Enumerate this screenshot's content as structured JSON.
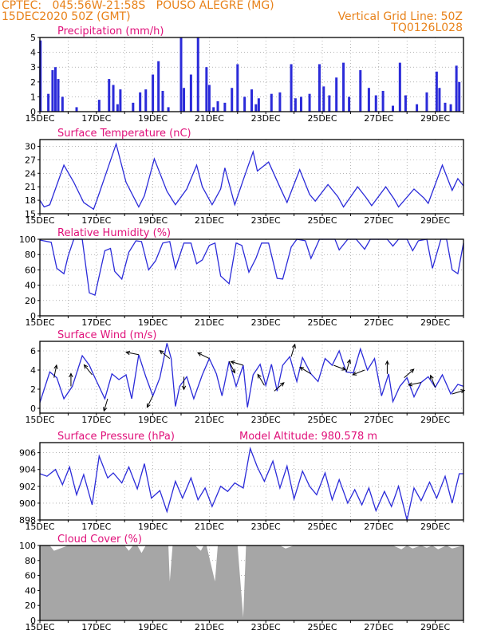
{
  "header": {
    "line1": "CPTEC:   045:56W-21:58S   POUSO ALEGRE (MG)",
    "line2_left": "15DEC2020 50Z (GMT)",
    "line2_right": "Vertical Grid Line: 50Z",
    "line3_right": "TQ0126L028"
  },
  "colors": {
    "header": "#e8821a",
    "panel_title": "#e0117a",
    "series": "#2b2bd9",
    "cloud": "#a6a6a6",
    "grid": "#888888"
  },
  "chart_data": [
    {
      "type": "bar",
      "title": "Precipitation (mm/h)",
      "ylim": [
        0,
        5
      ],
      "yticks": [
        0,
        1,
        2,
        3,
        4,
        5
      ],
      "xticks": [
        "15DEC",
        "17DEC",
        "19DEC",
        "21DEC",
        "23DEC",
        "25DEC",
        "27DEC",
        "29DEC"
      ],
      "xlim_days": [
        0,
        15
      ],
      "grid": true,
      "series": [
        {
          "x_days": [
            0.02,
            0.3,
            0.45,
            0.55,
            0.65,
            0.8,
            1.3,
            2.1,
            2.45,
            2.6,
            2.75,
            2.85,
            3.3,
            3.55,
            3.75,
            4.0,
            4.2,
            4.35,
            4.55,
            5.0,
            5.1,
            5.35,
            5.6,
            5.9,
            6.0,
            6.15,
            6.3,
            6.55,
            6.8,
            7.0,
            7.25,
            7.5,
            7.65,
            7.75,
            8.2,
            8.5,
            8.9,
            9.05,
            9.25,
            9.55,
            9.9,
            10.05,
            10.25,
            10.5,
            10.75,
            10.95,
            11.35,
            11.65,
            11.9,
            12.15,
            12.5,
            12.75,
            12.95,
            13.35,
            13.7,
            14.05,
            14.15,
            14.35,
            14.55,
            14.75,
            14.85
          ],
          "values": [
            4.8,
            1.2,
            2.8,
            3.0,
            2.2,
            1.0,
            0.3,
            0.8,
            2.2,
            1.8,
            0.5,
            1.5,
            0.6,
            1.3,
            1.5,
            2.5,
            3.4,
            1.4,
            0.3,
            5.0,
            1.6,
            2.5,
            5.0,
            3.0,
            1.8,
            0.3,
            0.7,
            0.6,
            1.6,
            3.2,
            1.0,
            1.5,
            0.5,
            0.9,
            1.2,
            1.3,
            3.2,
            0.9,
            1.0,
            1.2,
            3.2,
            1.7,
            1.1,
            2.3,
            3.3,
            1.0,
            2.8,
            1.6,
            1.1,
            1.4,
            0.4,
            3.3,
            1.1,
            0.5,
            1.3,
            2.7,
            1.6,
            0.6,
            0.5,
            3.1,
            2.0
          ]
        }
      ]
    },
    {
      "type": "line",
      "title": "Surface Temperature (nC)",
      "ylim": [
        15,
        31.5
      ],
      "yticks": [
        15,
        18,
        21,
        24,
        27,
        30
      ],
      "xticks": [
        "15DEC",
        "17DEC",
        "19DEC",
        "21DEC",
        "23DEC",
        "25DEC",
        "27DEC",
        "29DEC"
      ],
      "xlim_days": [
        0,
        15
      ],
      "grid": true,
      "series": [
        {
          "x_days": [
            0,
            0.15,
            0.35,
            0.85,
            1.2,
            1.55,
            1.9,
            2.1,
            2.7,
            3.05,
            3.5,
            3.7,
            4.05,
            4.5,
            4.8,
            5.2,
            5.55,
            5.75,
            6.1,
            6.4,
            6.55,
            6.75,
            6.9,
            7.2,
            7.55,
            7.7,
            8.1,
            8.55,
            8.75,
            9.2,
            9.55,
            9.75,
            10.2,
            10.55,
            10.75,
            11.25,
            11.55,
            11.75,
            12.25,
            12.55,
            12.7,
            13.25,
            13.6,
            13.75,
            14.25,
            14.6,
            14.8,
            15
          ],
          "values": [
            18,
            16.5,
            17,
            25.8,
            22,
            17.5,
            16,
            19.5,
            30.5,
            22,
            16.5,
            19,
            27.2,
            20,
            17,
            20.5,
            25.8,
            21,
            17,
            20.5,
            25.2,
            20.5,
            17,
            22.5,
            28.8,
            24.5,
            26.5,
            20.2,
            17.5,
            24.8,
            19.3,
            17.8,
            21.5,
            18.8,
            16.5,
            21,
            18.6,
            16.8,
            21,
            18.2,
            16.5,
            20.5,
            18.5,
            17.3,
            25.8,
            20.2,
            22.8,
            21.2
          ]
        }
      ]
    },
    {
      "type": "line",
      "title": "Relative Humidity (%)",
      "ylim": [
        0,
        100
      ],
      "yticks": [
        0,
        20,
        40,
        60,
        80,
        100
      ],
      "xticks": [
        "15DEC",
        "17DEC",
        "19DEC",
        "21DEC",
        "23DEC",
        "25DEC",
        "27DEC",
        "29DEC"
      ],
      "xlim_days": [
        0,
        15
      ],
      "grid": true,
      "series": [
        {
          "x_days": [
            0,
            0.4,
            0.6,
            0.85,
            1.0,
            1.2,
            1.5,
            1.75,
            1.95,
            2.3,
            2.5,
            2.65,
            2.9,
            3.15,
            3.4,
            3.6,
            3.85,
            4.1,
            4.35,
            4.6,
            4.8,
            5.1,
            5.35,
            5.55,
            5.75,
            6.0,
            6.2,
            6.4,
            6.7,
            6.95,
            7.15,
            7.4,
            7.65,
            7.85,
            8.1,
            8.4,
            8.6,
            8.9,
            9.1,
            9.4,
            9.6,
            9.9,
            10.1,
            10.45,
            10.6,
            10.9,
            11.2,
            11.5,
            11.7,
            12.0,
            12.3,
            12.5,
            12.7,
            13.0,
            13.2,
            13.4,
            13.7,
            13.9,
            14.2,
            14.4,
            14.6,
            14.8,
            15
          ],
          "values": [
            99,
            96,
            62,
            55,
            78,
            100,
            100,
            30,
            27,
            85,
            88,
            58,
            48,
            83,
            98,
            97,
            60,
            72,
            95,
            97,
            62,
            95,
            95,
            68,
            73,
            92,
            95,
            52,
            42,
            95,
            92,
            57,
            75,
            95,
            95,
            49,
            48,
            90,
            100,
            98,
            75,
            100,
            100,
            100,
            86,
            100,
            100,
            87,
            100,
            100,
            100,
            91,
            100,
            100,
            85,
            98,
            100,
            62,
            100,
            100,
            60,
            55,
            95
          ]
        }
      ]
    },
    {
      "type": "line",
      "title": "Surface Wind (m/s)",
      "ylim": [
        -0.5,
        7
      ],
      "yticks": [
        0,
        2,
        4,
        6
      ],
      "xticks": [
        "15DEC",
        "17DEC",
        "19DEC",
        "21DEC",
        "23DEC",
        "25DEC",
        "27DEC",
        "29DEC"
      ],
      "xlim_days": [
        0,
        15
      ],
      "grid": true,
      "series": [
        {
          "x_days": [
            0,
            0.35,
            0.6,
            0.85,
            1.15,
            1.5,
            1.75,
            1.9,
            2.3,
            2.55,
            2.8,
            3.05,
            3.25,
            3.5,
            3.75,
            4.0,
            4.25,
            4.5,
            4.65,
            4.8,
            4.95,
            5.2,
            5.45,
            5.75,
            6.0,
            6.25,
            6.45,
            6.7,
            6.95,
            7.2,
            7.35,
            7.55,
            7.8,
            8.0,
            8.2,
            8.4,
            8.6,
            8.85,
            9.1,
            9.3,
            9.6,
            9.85,
            10.1,
            10.35,
            10.6,
            10.85,
            11.1,
            11.35,
            11.6,
            11.85,
            12.1,
            12.35,
            12.5,
            12.75,
            13.0,
            13.25,
            13.5,
            13.75,
            14.0,
            14.25,
            14.55,
            14.8,
            15
          ],
          "values": [
            0.6,
            3.8,
            3.2,
            1.0,
            2.3,
            5.5,
            4.5,
            3.5,
            1.0,
            3.6,
            3.0,
            3.5,
            1.0,
            5.6,
            3.3,
            1.3,
            3.2,
            6.8,
            5.2,
            0.2,
            2.3,
            3.3,
            1.0,
            3.5,
            5.2,
            3.6,
            1.3,
            4.9,
            2.3,
            4.5,
            0.1,
            3.5,
            4.6,
            2.4,
            4.6,
            1.8,
            4.5,
            5.4,
            2.8,
            5.3,
            3.6,
            2.8,
            5.2,
            4.5,
            6.0,
            3.8,
            3.7,
            6.2,
            4.0,
            5.2,
            1.3,
            3.6,
            0.7,
            2.3,
            3.2,
            1.2,
            2.7,
            3.3,
            2.2,
            3.5,
            1.5,
            2.5,
            2.3
          ]
        }
      ],
      "arrows": [
        {
          "x_days": 0.5,
          "u": 0.2,
          "v": 1.0
        },
        {
          "x_days": 1.1,
          "u": 0.0,
          "v": 1.3
        },
        {
          "x_days": 1.85,
          "u": -0.8,
          "v": 1.0
        },
        {
          "x_days": 2.4,
          "u": -0.3,
          "v": -1.0
        },
        {
          "x_days": 3.5,
          "u": -1.0,
          "v": 0.2
        },
        {
          "x_days": 4.0,
          "u": -0.5,
          "v": -1.0
        },
        {
          "x_days": 4.6,
          "u": -1.0,
          "v": 0.8
        },
        {
          "x_days": 5.1,
          "u": 0.0,
          "v": -1.4
        },
        {
          "x_days": 6.0,
          "u": -1.0,
          "v": 0.5
        },
        {
          "x_days": 6.7,
          "u": 0.5,
          "v": -1.0
        },
        {
          "x_days": 7.2,
          "u": -1.0,
          "v": 0.3
        },
        {
          "x_days": 7.95,
          "u": -0.6,
          "v": 1.0
        },
        {
          "x_days": 8.3,
          "u": 0.8,
          "v": 0.7
        },
        {
          "x_days": 8.9,
          "u": 0.3,
          "v": 1.0
        },
        {
          "x_days": 9.6,
          "u": -1.0,
          "v": 0.6
        },
        {
          "x_days": 10.4,
          "u": 0.8,
          "v": -0.3
        },
        {
          "x_days": 10.85,
          "u": 0.3,
          "v": 1.0
        },
        {
          "x_days": 11.5,
          "u": -1.0,
          "v": -0.4
        },
        {
          "x_days": 12.3,
          "u": 0.0,
          "v": 1.2
        },
        {
          "x_days": 12.9,
          "u": 0.8,
          "v": 0.7
        },
        {
          "x_days": 13.5,
          "u": -1.0,
          "v": -0.2
        },
        {
          "x_days": 14.0,
          "u": -0.4,
          "v": 1.0
        },
        {
          "x_days": 14.6,
          "u": 1.0,
          "v": 0.3
        }
      ]
    },
    {
      "type": "line",
      "title": "Surface Pressure (hPa)",
      "annotation": "Model Altitude: 980.578 m",
      "ylim": [
        898,
        907.2
      ],
      "yticks": [
        898,
        900,
        902,
        904,
        906
      ],
      "xticks": [
        "15DEC",
        "17DEC",
        "19DEC",
        "21DEC",
        "23DEC",
        "25DEC",
        "27DEC",
        "29DEC"
      ],
      "xlim_days": [
        0,
        15
      ],
      "grid": true,
      "series": [
        {
          "x_days": [
            0,
            0.25,
            0.55,
            0.8,
            1.05,
            1.3,
            1.55,
            1.85,
            2.1,
            2.4,
            2.6,
            2.9,
            3.15,
            3.45,
            3.7,
            3.95,
            4.25,
            4.5,
            4.8,
            5.05,
            5.35,
            5.6,
            5.85,
            6.1,
            6.4,
            6.65,
            6.9,
            7.2,
            7.45,
            7.7,
            7.95,
            8.25,
            8.5,
            8.75,
            9.0,
            9.3,
            9.55,
            9.8,
            10.1,
            10.35,
            10.6,
            10.9,
            11.15,
            11.4,
            11.65,
            11.9,
            12.2,
            12.45,
            12.7,
            13.0,
            13.25,
            13.5,
            13.8,
            14.05,
            14.35,
            14.6,
            14.85,
            15
          ],
          "values": [
            903.5,
            903.2,
            904.0,
            902.2,
            904.3,
            901.0,
            903.4,
            899.8,
            905.6,
            903.0,
            903.6,
            902.4,
            904.3,
            901.7,
            904.7,
            900.6,
            901.5,
            899.0,
            902.6,
            900.6,
            903.0,
            900.4,
            901.8,
            899.6,
            902.0,
            901.4,
            902.4,
            901.8,
            906.5,
            904.3,
            902.6,
            905.0,
            901.8,
            904.4,
            900.5,
            903.8,
            902.0,
            901.0,
            903.6,
            900.4,
            902.8,
            900.0,
            901.6,
            899.8,
            901.8,
            899.1,
            901.4,
            899.6,
            902.0,
            898.0,
            901.8,
            900.3,
            902.5,
            900.6,
            903.2,
            900.0,
            903.5,
            903.5
          ]
        }
      ]
    },
    {
      "type": "area",
      "title": "Cloud Cover (%)",
      "ylim": [
        0,
        100
      ],
      "yticks": [
        0,
        20,
        40,
        60,
        80,
        100
      ],
      "xticks": [
        "15DEC",
        "17DEC",
        "19DEC",
        "21DEC",
        "23DEC",
        "25DEC",
        "27DEC",
        "29DEC"
      ],
      "xlim_days": [
        0,
        15
      ],
      "grid": true,
      "series": [
        {
          "x_days": [
            0,
            0.35,
            0.5,
            1.0,
            2.0,
            2.8,
            3.0,
            3.15,
            3.3,
            3.45,
            3.6,
            3.75,
            4.5,
            4.55,
            4.6,
            4.7,
            5.0,
            5.5,
            5.7,
            5.8,
            5.9,
            6.2,
            6.3,
            6.4,
            6.8,
            7.0,
            7.2,
            7.3,
            7.4,
            8.0,
            8.5,
            8.7,
            9.0,
            9.5,
            10.0,
            10.6,
            12.5,
            12.8,
            13.0,
            13.2,
            13.5,
            13.7,
            13.9,
            14.1,
            14.4,
            14.6,
            15
          ],
          "values": [
            100,
            100,
            93,
            100,
            100,
            100,
            100,
            93,
            100,
            100,
            90,
            100,
            100,
            100,
            52,
            100,
            100,
            100,
            93,
            100,
            100,
            52,
            100,
            100,
            100,
            100,
            4,
            100,
            100,
            100,
            100,
            96,
            100,
            100,
            100,
            100,
            100,
            95,
            100,
            96,
            100,
            97,
            100,
            95,
            100,
            96,
            100
          ]
        }
      ]
    }
  ]
}
